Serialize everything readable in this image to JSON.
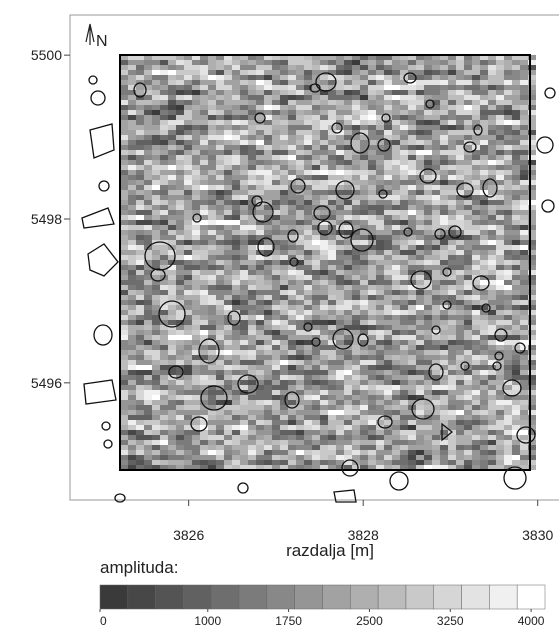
{
  "chart_data": {
    "type": "map",
    "xlabel": "razdalja [m]",
    "north_label": "N",
    "xlim": [
      3824.64,
      3830.37
    ],
    "ylim": [
      5494.57,
      5500.49
    ],
    "xticks": [
      3826,
      3828,
      3830
    ],
    "yticks": [
      5496,
      5498,
      5500
    ],
    "colorbar": {
      "title": "amplituda:",
      "lim": [
        0,
        4000
      ],
      "ticks": [
        0,
        1000,
        1750,
        2500,
        3250,
        4000
      ],
      "colors": [
        "#3a3a3a",
        "#474747",
        "#545454",
        "#616161",
        "#6e6e6e",
        "#7b7b7b",
        "#888888",
        "#959595",
        "#a2a2a2",
        "#afafaf",
        "#bcbcbc",
        "#c9c9c9",
        "#d6d6d6",
        "#e3e3e3",
        "#f0f0f0",
        "#ffffff"
      ]
    }
  }
}
